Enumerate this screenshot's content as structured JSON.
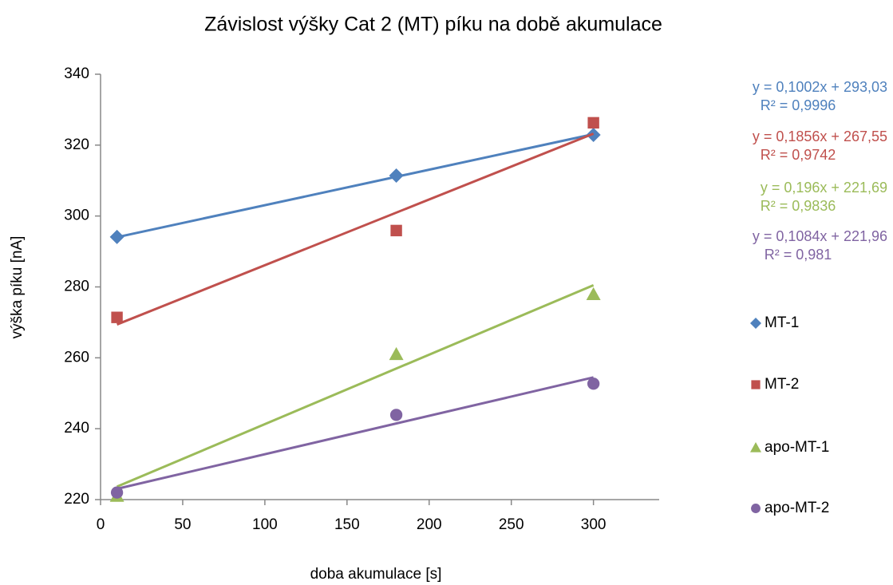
{
  "chart_data": {
    "type": "scatter",
    "title": "Závislost výšky Cat 2 (MT) píku na době akumulace",
    "x_label": "doba akumulace [s]",
    "y_label": "výška píku [nA]",
    "xlim": [
      0,
      340
    ],
    "xticks": [
      0,
      50,
      100,
      150,
      200,
      250,
      300
    ],
    "ylim": [
      220,
      340
    ],
    "yticks": [
      220,
      240,
      260,
      280,
      300,
      320,
      340
    ],
    "legend": "right",
    "series": [
      {
        "name": "MT-1",
        "color": "#4f81bd",
        "marker": "diamond",
        "x": [
          10,
          180,
          300
        ],
        "values": [
          294.1,
          311.4,
          322.9
        ],
        "trendline": {
          "equation": "y = 0,1002x + 293,03",
          "r2": "R² = 0,9996",
          "slope": 0.1002,
          "intercept": 293.03
        }
      },
      {
        "name": "MT-2",
        "color": "#c0504d",
        "marker": "square",
        "x": [
          10,
          180,
          300
        ],
        "values": [
          271.4,
          295.9,
          326.3
        ],
        "trendline": {
          "equation": "y = 0,1856x + 267,55",
          "r2": "R² = 0,9742",
          "slope": 0.1856,
          "intercept": 267.55
        }
      },
      {
        "name": "apo-MT-1",
        "color": "#9bbb59",
        "marker": "triangle",
        "x": [
          10,
          180,
          300
        ],
        "values": [
          221,
          261,
          277.9
        ],
        "trendline": {
          "equation": "y = 0,196x + 221,69",
          "r2": "R² = 0,9836",
          "slope": 0.196,
          "intercept": 221.69
        }
      },
      {
        "name": "apo-MT-2",
        "color": "#8064a2",
        "marker": "circle",
        "x": [
          10,
          180,
          300
        ],
        "values": [
          222,
          243.9,
          252.7
        ],
        "trendline": {
          "equation": "y = 0,1084x + 221,96",
          "r2": "R² = 0,981",
          "slope": 0.1084,
          "intercept": 221.96
        }
      }
    ]
  }
}
